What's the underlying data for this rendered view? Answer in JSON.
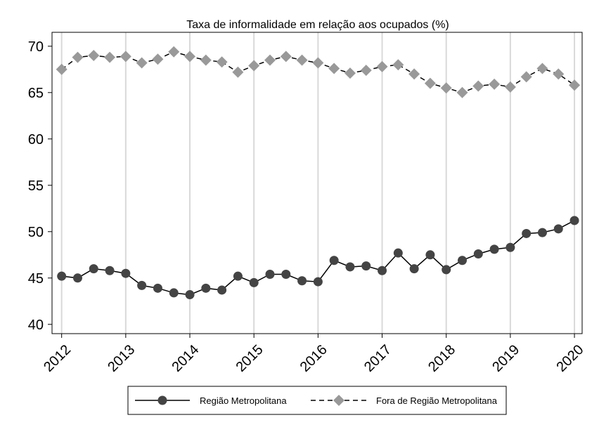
{
  "chart_data": {
    "type": "line",
    "title": "Taxa de informalidade em relação aos ocupados (%)",
    "xlabel": "",
    "ylabel": "",
    "ylim": [
      39,
      71.5
    ],
    "xlim": [
      2011.85,
      2020.12
    ],
    "yticks": [
      40,
      45,
      50,
      55,
      60,
      65,
      70
    ],
    "xticks": [
      2012,
      2013,
      2014,
      2015,
      2016,
      2017,
      2018,
      2019,
      2020
    ],
    "xtick_labels": [
      "2012",
      "2013",
      "2014",
      "2015",
      "2016",
      "2017",
      "2018",
      "2019",
      "2020"
    ],
    "grid": "vertical lines at year ticks",
    "legend_position": "bottom",
    "x": [
      2012.0,
      2012.25,
      2012.5,
      2012.75,
      2013.0,
      2013.25,
      2013.5,
      2013.75,
      2014.0,
      2014.25,
      2014.5,
      2014.75,
      2015.0,
      2015.25,
      2015.5,
      2015.75,
      2016.0,
      2016.25,
      2016.5,
      2016.75,
      2017.0,
      2017.25,
      2017.5,
      2017.75,
      2018.0,
      2018.25,
      2018.5,
      2018.75,
      2019.0,
      2019.25,
      2019.5,
      2019.75,
      2020.0
    ],
    "series": [
      {
        "name": "Região Metropolitana",
        "marker": "circle",
        "line": "solid",
        "color": "#444444",
        "values": [
          45.2,
          45.0,
          46.0,
          45.8,
          45.5,
          44.2,
          43.9,
          43.4,
          43.2,
          43.9,
          43.7,
          45.2,
          44.5,
          45.4,
          45.4,
          44.7,
          44.6,
          46.9,
          46.2,
          46.3,
          45.8,
          47.7,
          46.0,
          47.5,
          45.9,
          46.9,
          47.6,
          48.1,
          48.3,
          49.8,
          49.9,
          50.3,
          51.2
        ]
      },
      {
        "name": "Fora de Região Metropolitana",
        "marker": "diamond",
        "line": "dashed",
        "color": "#999999",
        "values": [
          67.5,
          68.8,
          69.0,
          68.8,
          68.9,
          68.2,
          68.6,
          69.4,
          68.9,
          68.5,
          68.3,
          67.2,
          67.9,
          68.5,
          68.9,
          68.5,
          68.2,
          67.6,
          67.1,
          67.4,
          67.8,
          68.0,
          67.0,
          66.0,
          65.5,
          65.0,
          65.7,
          65.9,
          65.6,
          66.7,
          67.6,
          67.0,
          65.8
        ]
      }
    ]
  }
}
